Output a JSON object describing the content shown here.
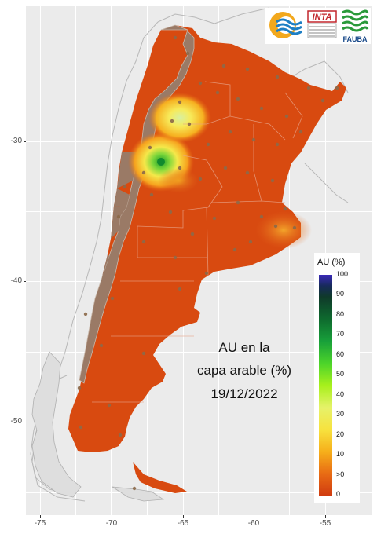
{
  "map": {
    "title_line1": "AU en la",
    "title_line2": "capa arable (%)",
    "date": "19/12/2022"
  },
  "axes": {
    "x_ticks": [
      "-75",
      "-70",
      "-65",
      "-60",
      "-55"
    ],
    "y_ticks": [
      "-30",
      "-40",
      "-50"
    ]
  },
  "legend": {
    "title": "AU (%)",
    "ticks": [
      "100",
      "90",
      "80",
      "70",
      "60",
      "50",
      "40",
      "30",
      "20",
      "10",
      ">0",
      "0"
    ]
  },
  "logos": {
    "inta": "INTA",
    "fauba": "FAUBA"
  },
  "colors": {
    "panel_background": "#ebebeb",
    "land_dry": "#d84a10",
    "arid_mask": "#9a7a66",
    "neighbor_outline": "#b5b5b5"
  }
}
